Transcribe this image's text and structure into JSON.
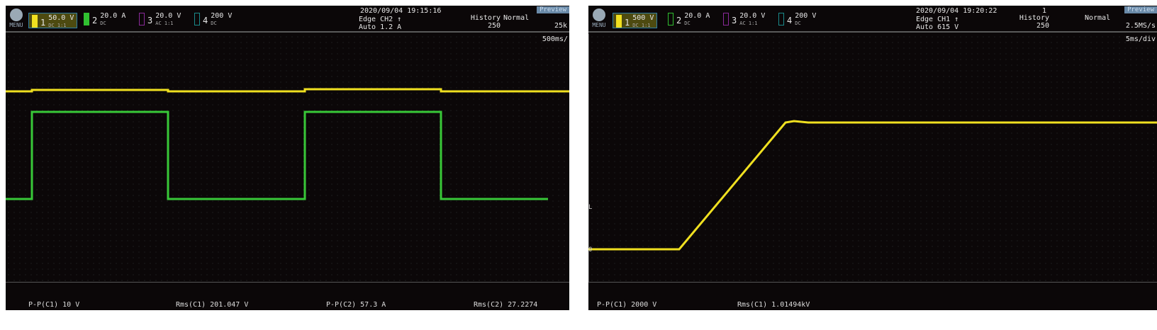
{
  "scopes": [
    {
      "menu": "MENU",
      "channels": [
        {
          "num": "1",
          "scale": "50.0 V",
          "sub": "DC 1:1",
          "color": "#f0e020"
        },
        {
          "num": "2",
          "scale": "20.0 A",
          "sub": "DC",
          "color": "#30c030"
        },
        {
          "num": "3",
          "scale": "20.0 V",
          "sub": "AC 1:1",
          "color": "#8a2a9a"
        },
        {
          "num": "4",
          "scale": "200 V",
          "sub": "DC",
          "color": "#1a8a8a"
        }
      ],
      "datetime": "2020/09/04 19:15:16",
      "trigger": "Edge CH2 ↑",
      "trigger_level": "Auto 1.2 A",
      "history_label": "History",
      "history_value": "250",
      "mode": "Normal",
      "mode_value": "25k",
      "status": "Preview",
      "timebase": "500ms/",
      "measurements": [
        "P-P(C1)  10 V",
        "Rms(C1)  201.047 V",
        "P-P(C2)  57.3 A",
        "Rms(C2)  27.2274"
      ]
    },
    {
      "menu": "MENU",
      "channels": [
        {
          "num": "1",
          "scale": "500 V",
          "sub": "DC 1:1",
          "color": "#f0e020"
        },
        {
          "num": "2",
          "scale": "20.0 A",
          "sub": "DC",
          "color": "#30c030"
        },
        {
          "num": "3",
          "scale": "20.0 V",
          "sub": "AC 1:1",
          "color": "#8a2a9a"
        },
        {
          "num": "4",
          "scale": "200 V",
          "sub": "DC",
          "color": "#1a8a8a"
        }
      ],
      "datetime": "2020/09/04 19:20:22",
      "counter": "1",
      "trigger": "Edge CH1 ↑",
      "trigger_level": "Auto 615 V",
      "history_label": "History",
      "history_value": "250",
      "mode": "Normal",
      "mode_value": "2.5MS/s",
      "status": "Preview",
      "timebase": "5ms/div",
      "markers": [
        "L",
        "0"
      ],
      "measurements": [
        "P-P(C1)  2000 V",
        "Rms(C1)  1.01494kV"
      ]
    }
  ]
}
